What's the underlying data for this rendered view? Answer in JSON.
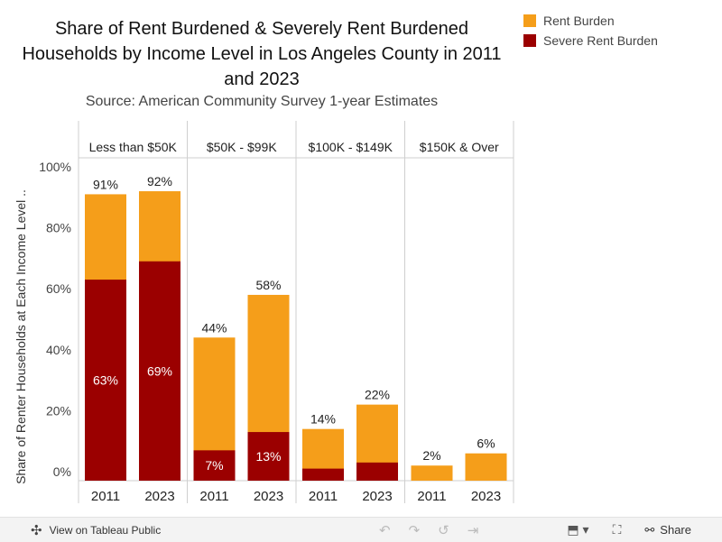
{
  "chart_data": {
    "type": "bar",
    "stacked": "overlay",
    "title": "Share of Rent Burdened & Severely Rent Burdened Households by Income Level in Los Angeles County in 2011 and 2023",
    "subtitle": "Source: American Community Survey 1-year Estimates",
    "ylabel": "Share of Renter Households at Each Income Level ..",
    "ylim": [
      0,
      100
    ],
    "yticks": [
      "0%",
      "20%",
      "40%",
      "60%",
      "80%",
      "100%"
    ],
    "ytick_values": [
      0,
      20,
      40,
      60,
      80,
      100
    ],
    "panels": [
      {
        "label": "Less than $50K",
        "categories": [
          "2011",
          "2023"
        ],
        "rent_burden": [
          91,
          92
        ],
        "severe": [
          63,
          69
        ],
        "rent_labels": [
          "91%",
          "92%"
        ],
        "severe_labels": [
          "63%",
          "69%"
        ]
      },
      {
        "label": "$50K - $99K",
        "categories": [
          "2011",
          "2023"
        ],
        "rent_burden": [
          44,
          58
        ],
        "severe": [
          7,
          13
        ],
        "rent_labels": [
          "44%",
          "58%"
        ],
        "severe_labels": [
          "7%",
          "13%"
        ]
      },
      {
        "label": "$100K - $149K",
        "categories": [
          "2011",
          "2023"
        ],
        "rent_burden": [
          14,
          22
        ],
        "severe": [
          1,
          3
        ],
        "rent_labels": [
          "14%",
          "22%"
        ],
        "severe_labels": [
          "",
          ""
        ]
      },
      {
        "label": "$150K & Over",
        "categories": [
          "2011",
          "2023"
        ],
        "rent_burden": [
          2,
          6
        ],
        "severe": [
          0,
          0
        ],
        "rent_labels": [
          "2%",
          "6%"
        ],
        "severe_labels": [
          "",
          ""
        ]
      }
    ],
    "legend": [
      {
        "label": "Rent Burden",
        "color": "#f59e1a"
      },
      {
        "label": "Severe Rent Burden",
        "color": "#9b0000"
      }
    ]
  },
  "footer": {
    "view_label": "View on Tableau Public",
    "share_label": "Share"
  }
}
